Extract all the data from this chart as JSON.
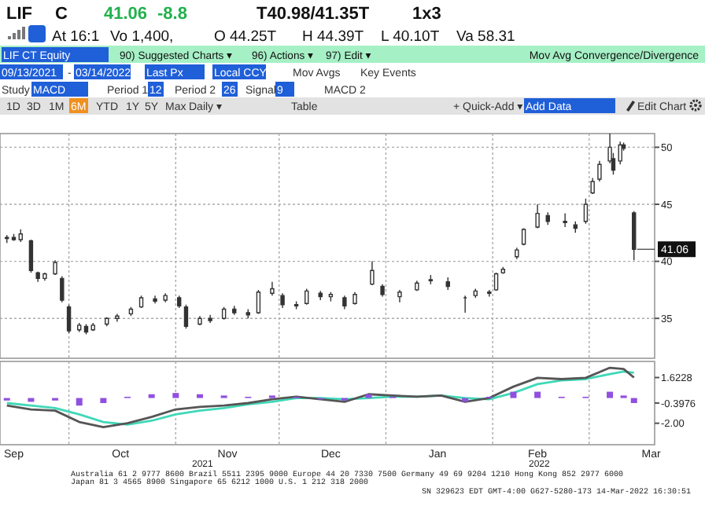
{
  "chart_data": [
    {
      "type": "candlestick",
      "x": [
        "2021-09-13",
        "2021-09-15",
        "2021-09-17",
        "2021-09-20",
        "2021-09-22",
        "2021-09-24",
        "2021-09-27",
        "2021-09-29",
        "2021-10-01",
        "2021-10-04",
        "2021-10-06",
        "2021-10-08",
        "2021-10-12",
        "2021-10-15",
        "2021-10-19",
        "2021-10-22",
        "2021-10-26",
        "2021-10-29",
        "2021-11-02",
        "2021-11-04",
        "2021-11-08",
        "2021-11-11",
        "2021-11-15",
        "2021-11-18",
        "2021-11-22",
        "2021-11-25",
        "2021-11-29",
        "2021-12-02",
        "2021-12-06",
        "2021-12-09",
        "2021-12-13",
        "2021-12-16",
        "2021-12-20",
        "2021-12-23",
        "2021-12-28",
        "2021-12-31",
        "2022-01-05",
        "2022-01-10",
        "2022-01-14",
        "2022-01-19",
        "2022-01-24",
        "2022-01-27",
        "2022-01-31",
        "2022-02-02",
        "2022-02-04",
        "2022-02-08",
        "2022-02-10",
        "2022-02-14",
        "2022-02-17",
        "2022-02-22",
        "2022-02-25",
        "2022-02-28",
        "2022-03-02",
        "2022-03-04",
        "2022-03-07",
        "2022-03-08",
        "2022-03-10",
        "2022-03-11",
        "2022-03-14"
      ],
      "ohlc": [
        [
          42.0,
          42.3,
          41.6,
          42.1
        ],
        [
          42.1,
          42.4,
          41.8,
          41.9
        ],
        [
          41.9,
          42.8,
          41.7,
          42.4
        ],
        [
          41.8,
          41.9,
          39.0,
          39.2
        ],
        [
          39.0,
          39.1,
          38.2,
          38.5
        ],
        [
          38.5,
          39.0,
          38.3,
          38.9
        ],
        [
          38.9,
          40.1,
          38.8,
          39.9
        ],
        [
          38.5,
          38.7,
          36.4,
          36.6
        ],
        [
          36.0,
          36.2,
          33.7,
          33.9
        ],
        [
          34.0,
          34.6,
          33.8,
          34.4
        ],
        [
          34.3,
          34.5,
          33.6,
          33.8
        ],
        [
          34.0,
          34.6,
          33.9,
          34.4
        ],
        [
          34.5,
          35.1,
          34.3,
          35.0
        ],
        [
          35.0,
          35.4,
          34.7,
          35.2
        ],
        [
          35.4,
          36.0,
          35.2,
          35.8
        ],
        [
          36.0,
          37.0,
          35.9,
          36.8
        ],
        [
          36.7,
          37.0,
          36.3,
          36.5
        ],
        [
          36.6,
          37.2,
          36.4,
          37.0
        ],
        [
          36.8,
          37.0,
          35.9,
          36.1
        ],
        [
          36.0,
          36.2,
          34.1,
          34.3
        ],
        [
          34.5,
          35.2,
          34.4,
          35.0
        ],
        [
          35.0,
          35.3,
          34.6,
          34.8
        ],
        [
          35.0,
          36.0,
          34.9,
          35.8
        ],
        [
          35.8,
          36.1,
          35.3,
          35.5
        ],
        [
          35.5,
          35.8,
          35.0,
          35.3
        ],
        [
          35.5,
          37.5,
          35.4,
          37.3
        ],
        [
          37.2,
          38.2,
          37.0,
          37.6
        ],
        [
          37.0,
          37.2,
          35.9,
          36.2
        ],
        [
          36.2,
          36.5,
          35.8,
          36.1
        ],
        [
          36.3,
          37.6,
          36.2,
          37.4
        ],
        [
          37.2,
          37.4,
          36.6,
          36.9
        ],
        [
          36.9,
          37.3,
          36.5,
          37.1
        ],
        [
          36.8,
          37.0,
          35.8,
          36.1
        ],
        [
          36.3,
          37.3,
          36.2,
          37.1
        ],
        [
          38.0,
          40.0,
          37.9,
          39.2
        ],
        [
          37.8,
          38.0,
          36.9,
          37.1
        ],
        [
          36.9,
          37.5,
          36.4,
          37.3
        ],
        [
          37.5,
          38.3,
          37.4,
          38.1
        ],
        [
          38.3,
          38.8,
          38.0,
          38.4
        ],
        [
          38.2,
          38.6,
          37.5,
          37.8
        ],
        [
          36.8,
          37.0,
          35.5,
          36.8
        ],
        [
          37.0,
          37.6,
          36.8,
          37.4
        ],
        [
          37.2,
          37.5,
          36.9,
          37.3
        ],
        [
          37.5,
          39.0,
          37.4,
          38.9
        ],
        [
          39.0,
          39.5,
          38.9,
          39.3
        ],
        [
          40.4,
          41.2,
          40.2,
          41.0
        ],
        [
          41.5,
          42.9,
          41.4,
          42.8
        ],
        [
          43.0,
          45.0,
          42.9,
          44.2
        ],
        [
          44.0,
          44.3,
          43.2,
          43.5
        ],
        [
          43.5,
          44.2,
          43.0,
          43.4
        ],
        [
          43.2,
          43.5,
          42.5,
          42.9
        ],
        [
          43.5,
          45.5,
          43.3,
          45.0
        ],
        [
          46.0,
          47.3,
          45.9,
          47.0
        ],
        [
          47.2,
          48.8,
          47.0,
          48.5
        ],
        [
          48.8,
          51.2,
          48.6,
          50.0
        ],
        [
          49.0,
          49.5,
          47.6,
          48.0
        ],
        [
          48.8,
          50.5,
          48.5,
          50.2
        ],
        [
          50.2,
          50.4,
          49.7,
          49.9
        ],
        [
          44.25,
          44.39,
          40.1,
          41.06
        ]
      ],
      "color": "#333333",
      "xlim": [
        "2021-09-11",
        "2022-03-20"
      ],
      "xticks": [
        {
          "value": "2021-10-01",
          "label": null
        },
        {
          "value": "2021-11-01",
          "label": null
        },
        {
          "value": "2021-12-01",
          "label": null
        },
        {
          "value": "2022-01-01",
          "label": null
        },
        {
          "value": "2022-02-01",
          "label": null
        },
        {
          "value": "2022-03-01",
          "label": null
        }
      ],
      "ylim": [
        31.5,
        51.2
      ],
      "yticks": [
        35,
        40,
        45,
        50
      ],
      "grid": true,
      "tick_labels": "y",
      "annotations": [
        "LIF",
        "C",
        "41.06",
        "-8.8",
        "T40.98/41.35T",
        "1x3",
        "At 16:1",
        "Vo 1,400,",
        "O 44.25T",
        "H 44.39T",
        "L 40.10T",
        "Va 58.31",
        "LIF CT Equity",
        "90) Suggested Charts ▾",
        "96) Actions ▾",
        "97) Edit ▾",
        "Mov Avg Convergence/Divergence",
        "09/13/2021",
        "-",
        "03/14/2022",
        "Last Px",
        "Local CCY",
        "Mov Avgs",
        "Key Events",
        "Study",
        "MACD",
        "Period 1",
        "12",
        "Period 2",
        "26",
        "Signal",
        "9",
        "MACD 2",
        "1D",
        "3D",
        "1M",
        "6M",
        "YTD",
        "1Y",
        "5Y",
        "Max",
        "Daily ▾",
        "Table",
        "+ Quick-Add ▾",
        "Add Data",
        "Edit Chart",
        "2021",
        "2022",
        "Australia 61 2 9777 8600 Brazil 5511 2395 9000 Europe 44 20 7330 7500 Germany 49 69 9204 1210 Hong Kong 852 2977 6000",
        "Japan 81 3 4565 8900   Singapore 65 6212 1000   U.S. 1 212 318 2000",
        "SN 329623 EDT  GMT-4:00 G627-5280-173 14-Mar-2022 16:30:51",
        {
          "text": "41.06",
          "x": "2022-03-14",
          "y": 41.06
        }
      ]
    },
    {
      "type": "line",
      "x": [
        "2021-09-13",
        "2021-09-20",
        "2021-09-27",
        "2021-10-04",
        "2021-10-11",
        "2021-10-18",
        "2021-10-25",
        "2021-11-01",
        "2021-11-08",
        "2021-11-15",
        "2021-11-22",
        "2021-11-29",
        "2021-12-06",
        "2021-12-13",
        "2021-12-20",
        "2021-12-27",
        "2022-01-03",
        "2022-01-10",
        "2022-01-17",
        "2022-01-24",
        "2022-01-31",
        "2022-02-07",
        "2022-02-14",
        "2022-02-21",
        "2022-02-28",
        "2022-03-07",
        "2022-03-11",
        "2022-03-14"
      ],
      "series": [
        {
          "type": "bar",
          "color": "#9050e0",
          "values": [
            -0.2,
            -0.3,
            -0.2,
            -0.6,
            -0.4,
            0.1,
            0.3,
            0.4,
            0.3,
            0.2,
            0.1,
            0.2,
            0.1,
            -0.1,
            -0.2,
            0.3,
            0.1,
            0.0,
            0.0,
            -0.3,
            0.1,
            0.5,
            0.5,
            0.1,
            0.1,
            0.5,
            0.2,
            -0.3976
          ]
        },
        {
          "type": "line",
          "color": "#40d8b8",
          "values": [
            -0.4,
            -0.6,
            -0.8,
            -1.3,
            -1.9,
            -2.1,
            -1.8,
            -1.3,
            -1.0,
            -0.8,
            -0.5,
            -0.3,
            0.0,
            0.0,
            -0.1,
            0.0,
            0.1,
            0.1,
            0.2,
            0.0,
            -0.1,
            0.4,
            1.1,
            1.4,
            1.5,
            1.9,
            2.1,
            2.0
          ]
        },
        {
          "type": "line",
          "color": "#555555",
          "values": [
            -0.6,
            -0.9,
            -1.0,
            -1.9,
            -2.3,
            -2.0,
            -1.5,
            -0.9,
            -0.7,
            -0.6,
            -0.4,
            -0.1,
            0.1,
            -0.1,
            -0.3,
            0.3,
            0.2,
            0.1,
            0.2,
            -0.3,
            0.0,
            0.9,
            1.6,
            1.5,
            1.6,
            2.4,
            2.3,
            1.6228
          ]
        }
      ],
      "xlim": [
        "2021-09-11",
        "2022-03-20"
      ],
      "xticks": [
        {
          "value": "2021-10-01",
          "label": null
        },
        {
          "value": "2021-11-01",
          "label": null
        },
        {
          "value": "2021-12-01",
          "label": null
        },
        {
          "value": "2022-01-01",
          "label": null
        },
        {
          "value": "2022-02-01",
          "label": null
        },
        {
          "value": "2022-03-01",
          "label": null
        },
        {
          "value": "2021-09-15",
          "label": "Sep"
        },
        {
          "value": "2021-10-16",
          "label": "Oct"
        },
        {
          "value": "2021-11-16",
          "label": "Nov"
        },
        {
          "value": "2021-12-16",
          "label": "Dec"
        },
        {
          "value": "2022-01-16",
          "label": "Jan"
        },
        {
          "value": "2022-02-14",
          "label": "Feb"
        },
        {
          "value": "2022-03-19",
          "label": "Mar"
        }
      ],
      "ylim": [
        -3.7,
        2.9
      ],
      "yticks": [
        {
          "value": 1.6228,
          "label": "1.6228"
        },
        {
          "value": -0.3976,
          "label": "-0.3976"
        },
        {
          "value": -2,
          "label": "-2.00"
        }
      ],
      "grid": "x"
    }
  ]
}
